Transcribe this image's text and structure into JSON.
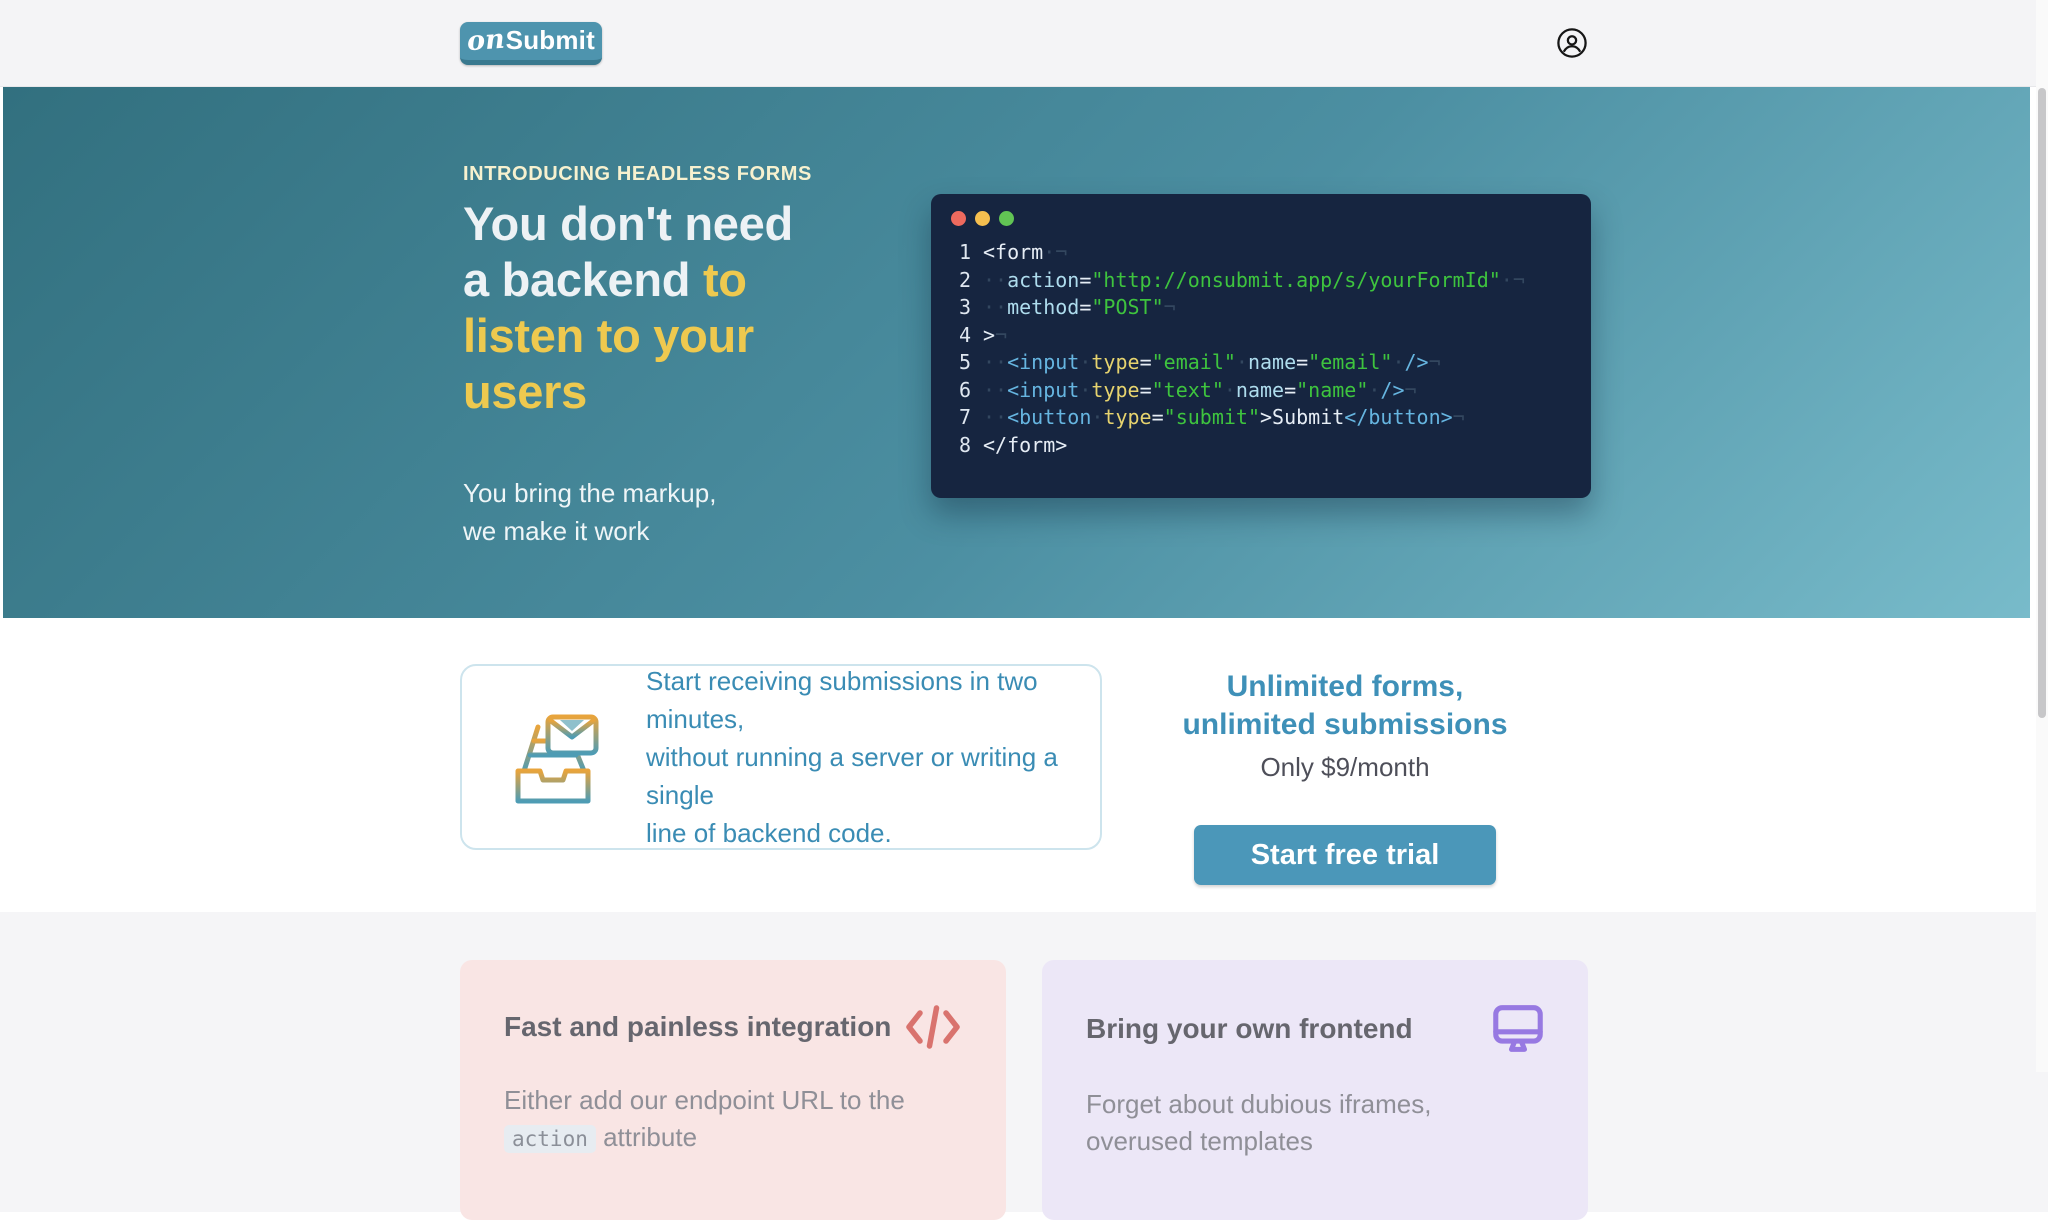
{
  "nav": {
    "logo_script": "on",
    "logo_word": "Submit"
  },
  "hero": {
    "eyebrow": "INTRODUCING HEADLESS FORMS",
    "title_lines": [
      {
        "white": "You don't need",
        "accent": ""
      },
      {
        "white": "a backend ",
        "accent": "to"
      },
      {
        "white": "",
        "accent": "listen to your"
      },
      {
        "white": "",
        "accent": "users"
      }
    ],
    "subtitle_lines": [
      "You bring the markup,",
      "we make it work"
    ],
    "accent_color": "#eec94f",
    "background_gradient": [
      "#32707f",
      "#78bbca"
    ]
  },
  "code_window": {
    "dot_colors": [
      "#ed6a5e",
      "#f5bf4f",
      "#61c454"
    ],
    "background": "#162540",
    "syntax_colors": {
      "plain": "#e6edf5",
      "attribute": "#aedced",
      "tag": "#66b5e0",
      "type_attr": "#e6d36e",
      "string": "#3ec43e",
      "whitespace": "#33475f"
    },
    "lines": [
      {
        "num": "1",
        "tokens": [
          [
            "p",
            "<form"
          ],
          [
            "w",
            "·¬"
          ]
        ]
      },
      {
        "num": "2",
        "tokens": [
          [
            "w",
            "··"
          ],
          [
            "a",
            "action"
          ],
          [
            "p",
            "="
          ],
          [
            "s",
            "\"http://onsubmit.app/s/yourFormId\""
          ],
          [
            "w",
            "·¬"
          ]
        ]
      },
      {
        "num": "3",
        "tokens": [
          [
            "w",
            "··"
          ],
          [
            "a",
            "method"
          ],
          [
            "p",
            "="
          ],
          [
            "s",
            "\"POST\""
          ],
          [
            "w",
            "¬"
          ]
        ]
      },
      {
        "num": "4",
        "tokens": [
          [
            "p",
            ">"
          ],
          [
            "w",
            "¬"
          ]
        ]
      },
      {
        "num": "5",
        "tokens": [
          [
            "w",
            "··"
          ],
          [
            "t",
            "<input"
          ],
          [
            "w",
            "·"
          ],
          [
            "k",
            "type"
          ],
          [
            "p",
            "="
          ],
          [
            "s",
            "\"email\""
          ],
          [
            "w",
            "·"
          ],
          [
            "a",
            "name"
          ],
          [
            "p",
            "="
          ],
          [
            "s",
            "\"email\""
          ],
          [
            "w",
            "·"
          ],
          [
            "t",
            "/>"
          ],
          [
            "w",
            "¬"
          ]
        ]
      },
      {
        "num": "6",
        "tokens": [
          [
            "w",
            "··"
          ],
          [
            "t",
            "<input"
          ],
          [
            "w",
            "·"
          ],
          [
            "k",
            "type"
          ],
          [
            "p",
            "="
          ],
          [
            "s",
            "\"text\""
          ],
          [
            "w",
            "·"
          ],
          [
            "a",
            "name"
          ],
          [
            "p",
            "="
          ],
          [
            "s",
            "\"name\""
          ],
          [
            "w",
            "·"
          ],
          [
            "t",
            "/>"
          ],
          [
            "w",
            "¬"
          ]
        ]
      },
      {
        "num": "7",
        "tokens": [
          [
            "w",
            "··"
          ],
          [
            "t",
            "<button"
          ],
          [
            "w",
            "·"
          ],
          [
            "k",
            "type"
          ],
          [
            "p",
            "="
          ],
          [
            "s",
            "\"submit\""
          ],
          [
            "p",
            ">Submit"
          ],
          [
            "t",
            "</button>"
          ],
          [
            "w",
            "¬"
          ]
        ]
      },
      {
        "num": "8",
        "tokens": [
          [
            "p",
            "</form>"
          ]
        ]
      }
    ]
  },
  "promo": {
    "info_lines": [
      "Start receiving submissions in two minutes,",
      "without running a server or writing a single",
      "line of backend code."
    ],
    "pricing_title_lines": [
      "Unlimited forms,",
      "unlimited submissions"
    ],
    "price": "Only $9/month",
    "cta_label": "Start free trial",
    "cta_color": "#4b97b9",
    "text_color": "#3a8cb4"
  },
  "features": {
    "left": {
      "title": "Fast and painless integration",
      "body_prefix": "Either add our endpoint URL to the ",
      "body_code": "action",
      "body_suffix": " attribute",
      "background": "#f9e5e4",
      "icon_color": "#d9736e"
    },
    "right": {
      "title": "Bring your own frontend",
      "body": "Forget about dubious iframes, overused templates",
      "background": "#ece7f7",
      "icon_color": "#9779e2"
    }
  }
}
